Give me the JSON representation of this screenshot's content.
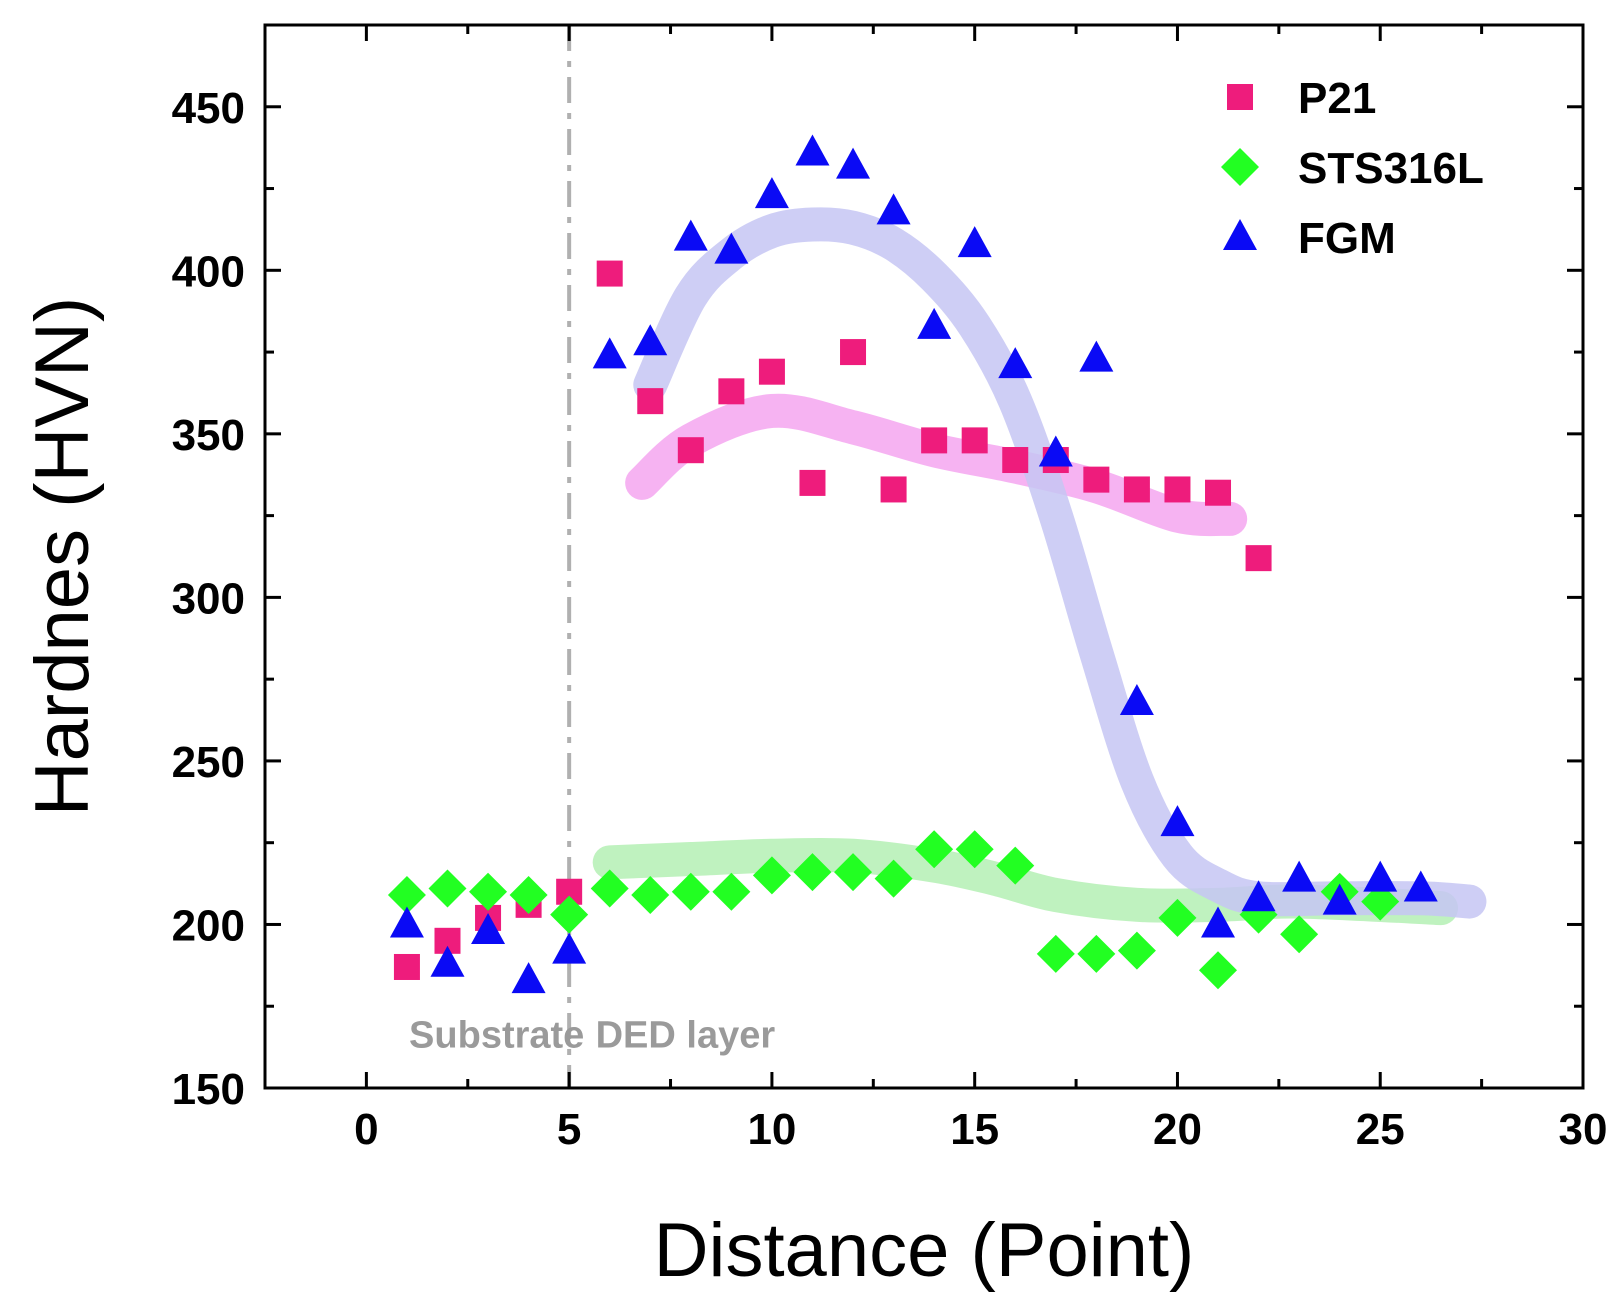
{
  "chart_data": {
    "type": "scatter",
    "xlabel": "Distance (Point)",
    "ylabel": "Hardnes (HVN)",
    "xlim": [
      -2.5,
      30
    ],
    "ylim": [
      150,
      475
    ],
    "xticks": [
      0,
      5,
      10,
      15,
      20,
      25,
      30
    ],
    "yticks": [
      150,
      200,
      250,
      300,
      350,
      400,
      450
    ],
    "grid": false,
    "legend_position": "top-right",
    "divider": {
      "x": 5,
      "style": "dash-dot",
      "color": "#b0b0b0"
    },
    "region_labels": [
      {
        "text": "Substrate",
        "x": 1.2,
        "y": 166
      },
      {
        "text": "DED layer",
        "x": 5.8,
        "y": 166
      }
    ],
    "series": [
      {
        "name": "P21",
        "marker": "square",
        "color": "#ee1c7c",
        "trend_color": "#f4a6f0",
        "x": [
          1,
          2,
          3,
          4,
          5,
          6,
          7,
          8,
          9,
          10,
          11,
          12,
          13,
          14,
          15,
          16,
          17,
          18,
          19,
          20,
          21,
          22
        ],
        "y": [
          187,
          195,
          202,
          206,
          210,
          399,
          360,
          345,
          363,
          369,
          335,
          375,
          333,
          348,
          348,
          342,
          342,
          336,
          333,
          333,
          332,
          312
        ],
        "trend": [
          [
            6.8,
            335
          ],
          [
            8,
            348
          ],
          [
            10,
            357
          ],
          [
            12,
            352
          ],
          [
            14,
            345
          ],
          [
            16,
            340
          ],
          [
            18,
            334
          ],
          [
            20,
            325
          ],
          [
            21.3,
            324
          ]
        ]
      },
      {
        "name": "STS316L",
        "marker": "diamond",
        "color": "#22ff22",
        "trend_color": "#b4f0b4",
        "x": [
          1,
          2,
          3,
          4,
          5,
          6,
          7,
          8,
          9,
          10,
          11,
          12,
          13,
          14,
          15,
          16,
          17,
          18,
          19,
          20,
          21,
          22,
          23,
          24,
          25
        ],
        "y": [
          209,
          211,
          210,
          209,
          203,
          211,
          209,
          210,
          210,
          215,
          216,
          216,
          214,
          223,
          223,
          218,
          191,
          191,
          192,
          202,
          186,
          203,
          197,
          210,
          207
        ],
        "trend": [
          [
            6,
            219
          ],
          [
            8,
            220
          ],
          [
            10,
            221
          ],
          [
            12,
            221
          ],
          [
            14,
            218
          ],
          [
            15.5,
            214
          ],
          [
            17,
            209
          ],
          [
            19,
            206
          ],
          [
            21,
            206
          ],
          [
            23,
            207
          ],
          [
            26.5,
            205
          ]
        ]
      },
      {
        "name": "FGM",
        "marker": "triangle",
        "color": "#0a0af5",
        "trend_color": "#c6c6f3",
        "x": [
          1,
          2,
          3,
          4,
          5,
          6,
          7,
          8,
          9,
          10,
          11,
          12,
          13,
          14,
          15,
          16,
          17,
          18,
          19,
          20,
          21,
          22,
          23,
          24,
          25,
          26
        ],
        "y": [
          200,
          188,
          198,
          183,
          192,
          374,
          378,
          410,
          406,
          423,
          436,
          432,
          418,
          383,
          408,
          371,
          344,
          373,
          268,
          231,
          200,
          208,
          214,
          207,
          214,
          211
        ],
        "trend": [
          [
            7,
            365
          ],
          [
            8,
            392
          ],
          [
            9,
            405
          ],
          [
            10,
            412
          ],
          [
            11,
            414
          ],
          [
            12,
            413
          ],
          [
            13,
            408
          ],
          [
            14,
            398
          ],
          [
            15,
            383
          ],
          [
            16,
            360
          ],
          [
            17,
            325
          ],
          [
            18,
            283
          ],
          [
            19,
            244
          ],
          [
            20,
            221
          ],
          [
            21,
            212
          ],
          [
            22,
            208
          ],
          [
            24,
            208
          ],
          [
            26,
            208
          ],
          [
            27.2,
            207
          ]
        ]
      }
    ]
  }
}
